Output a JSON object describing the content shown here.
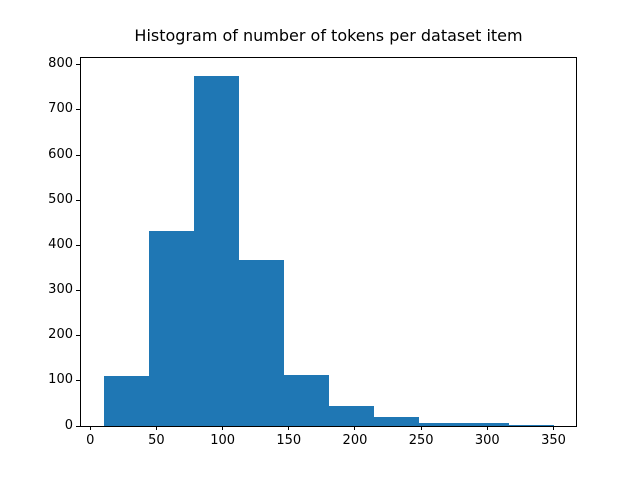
{
  "chart_data": {
    "type": "bar",
    "subtype": "histogram",
    "title": "Histogram of number of tokens per dataset item",
    "xlabel": "",
    "ylabel": "",
    "bin_edges": [
      10,
      44,
      78,
      112,
      146,
      180,
      214,
      248,
      282,
      316,
      350
    ],
    "counts": [
      110,
      432,
      776,
      367,
      113,
      44,
      20,
      7,
      7,
      2
    ],
    "x_ticks": [
      0,
      50,
      100,
      150,
      200,
      250,
      300,
      350
    ],
    "y_ticks": [
      0,
      100,
      200,
      300,
      400,
      500,
      600,
      700,
      800
    ],
    "xlim": [
      -7,
      367
    ],
    "ylim": [
      0,
      815
    ],
    "bar_color": "#1f77b4",
    "axes_color": "#000000",
    "background_color": "#ffffff",
    "grid": false,
    "legend": false
  }
}
